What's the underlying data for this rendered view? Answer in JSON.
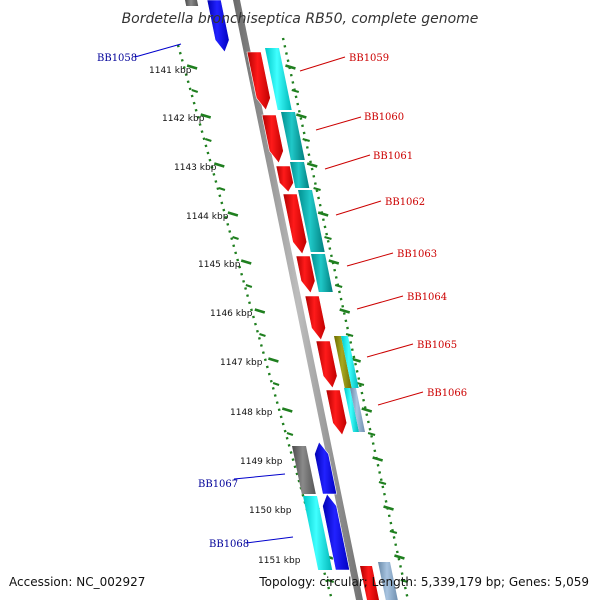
{
  "title": "Bordetella bronchiseptica RB50, complete genome",
  "footer": {
    "accession": "Accession: NC_002927",
    "summary": "Topology: circular; Length: 5,339,179 bp; Genes: 5,059"
  },
  "ticks": [
    {
      "label": "1141 kbp"
    },
    {
      "label": "1142 kbp"
    },
    {
      "label": "1143 kbp"
    },
    {
      "label": "1144 kbp"
    },
    {
      "label": "1145 kbp"
    },
    {
      "label": "1146 kbp"
    },
    {
      "label": "1147 kbp"
    },
    {
      "label": "1148 kbp"
    },
    {
      "label": "1149 kbp"
    },
    {
      "label": "1150 kbp"
    },
    {
      "label": "1151 kbp"
    }
  ],
  "genes_left": [
    {
      "label": "BB1058"
    },
    {
      "label": "BB1067"
    },
    {
      "label": "BB1068"
    }
  ],
  "genes_right": [
    {
      "label": "BB1059"
    },
    {
      "label": "BB1060"
    },
    {
      "label": "BB1061"
    },
    {
      "label": "BB1062"
    },
    {
      "label": "BB1063"
    },
    {
      "label": "BB1064"
    },
    {
      "label": "BB1065"
    },
    {
      "label": "BB1066"
    }
  ],
  "colors": {
    "forward_gene": "#ff0000",
    "reverse_gene": "#0000ff",
    "cog_cyan": "#00e5e5",
    "backbone": "#8c8c8c",
    "tick": "#1f7f1f",
    "label_forward": "#cc0000",
    "label_reverse": "#000099"
  }
}
